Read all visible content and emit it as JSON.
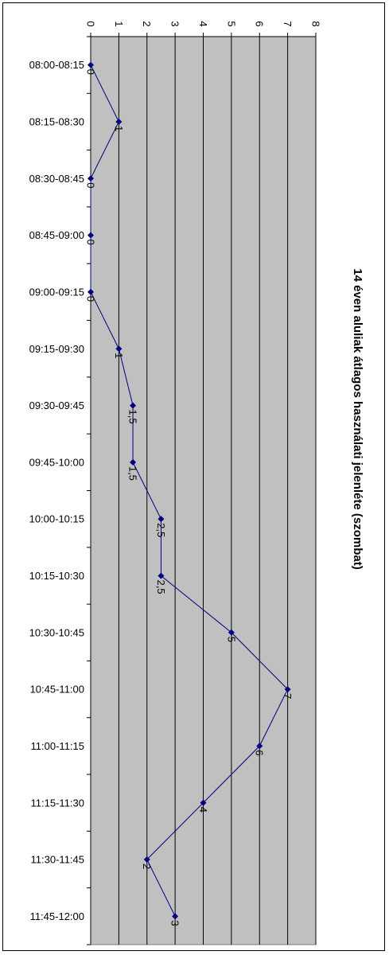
{
  "chart_data": {
    "type": "line",
    "title": "14 éven aluliak átlagos használati jelenléte (szombat)",
    "categories": [
      "08:00-08:15",
      "08:15-08:30",
      "08:30-08:45",
      "08:45-09:00",
      "09:00-09:15",
      "09:15-09:30",
      "09:30-09:45",
      "09:45-10:00",
      "10:00-10:15",
      "10:15-10:30",
      "10:30-10:45",
      "10:45-11:00",
      "11:00-11:15",
      "11:15-11:30",
      "11:30-11:45",
      "11:45-12:00"
    ],
    "values": [
      0,
      1,
      0,
      0,
      0,
      1,
      1.5,
      1.5,
      2.5,
      2.5,
      5,
      7,
      6,
      4,
      2,
      3
    ],
    "data_labels": [
      "0",
      "1",
      "0",
      "0",
      "0",
      "1",
      "1,5",
      "1,5",
      "2,5",
      "2,5",
      "5",
      "7",
      "6",
      "4",
      "2",
      "3"
    ],
    "value_axis": {
      "min": 0,
      "max": 8,
      "step": 1,
      "tick_labels": [
        "0",
        "1",
        "2",
        "3",
        "4",
        "5",
        "6",
        "7",
        "8"
      ]
    },
    "orientation": "rotated-90-clockwise",
    "grid": true,
    "legend": "none",
    "colors": {
      "plot_background": "#c0c0c0",
      "series": "#000080",
      "gridline": "#000000"
    }
  }
}
